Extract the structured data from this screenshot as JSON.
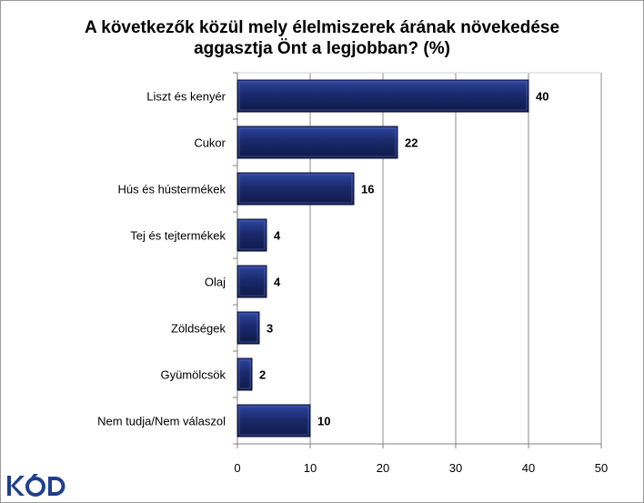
{
  "chart_data": {
    "type": "bar",
    "orientation": "horizontal",
    "title_line1": "A következők közül mely élelmiszerek árának növekedése",
    "title_line2": "aggasztja Önt a legjobban? (%)",
    "categories": [
      "Liszt és kenyér",
      "Cukor",
      "Hús és hústermékek",
      "Tej és tejtermékek",
      "Olaj",
      "Zöldségek",
      "Gyümölcsök",
      "Nem tudja/Nem válaszol"
    ],
    "values": [
      40,
      22,
      16,
      4,
      4,
      3,
      2,
      10
    ],
    "xlim": [
      0,
      50
    ],
    "xticks": [
      0,
      10,
      20,
      30,
      40,
      50
    ],
    "grid": true,
    "bar_color": "#1a2a6c",
    "data_labels": true
  },
  "logo": {
    "text": "KÓD",
    "color": "#1f3f8f"
  }
}
